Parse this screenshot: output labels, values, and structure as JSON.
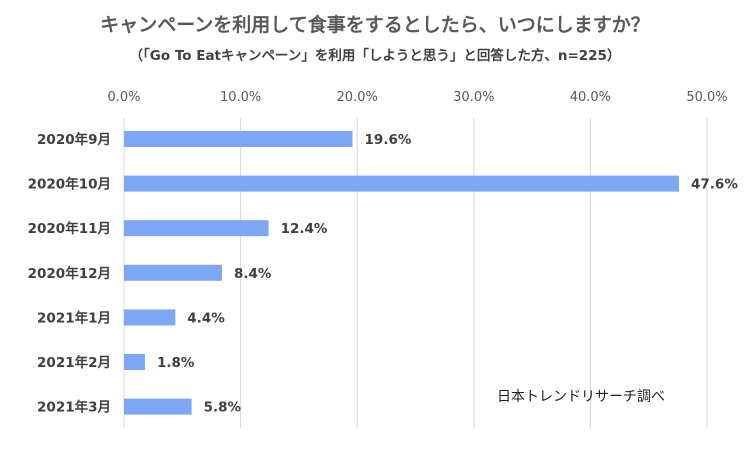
{
  "chart_data": {
    "type": "bar",
    "orientation": "horizontal",
    "title": "キャンペーンを利用して食事をするとしたら、いつにしますか？",
    "subtitle": "（「Go To Eatキャンペーン」を利用「しようと思う」と回答した方、n=225）",
    "categories": [
      "2020年9月",
      "2020年10月",
      "2020年11月",
      "2020年12月",
      "2021年1月",
      "2021年2月",
      "2021年3月"
    ],
    "values": [
      19.6,
      47.6,
      12.4,
      8.4,
      4.4,
      1.8,
      5.8
    ],
    "data_labels": [
      "19.6%",
      "47.6%",
      "12.4%",
      "8.4%",
      "4.4%",
      "1.8%",
      "5.8%"
    ],
    "xlim": [
      0,
      50
    ],
    "xticks": [
      0,
      10,
      20,
      30,
      40,
      50
    ],
    "xtick_labels": [
      "0.0%",
      "10.0%",
      "20.0%",
      "30.0%",
      "40.0%",
      "50.0%"
    ],
    "x_axis_position": "top",
    "grid": true,
    "bar_color": "#7DA7F5",
    "grid_color": "#D9D9D9",
    "source_note": "日本トレンドリサーチ調べ"
  }
}
